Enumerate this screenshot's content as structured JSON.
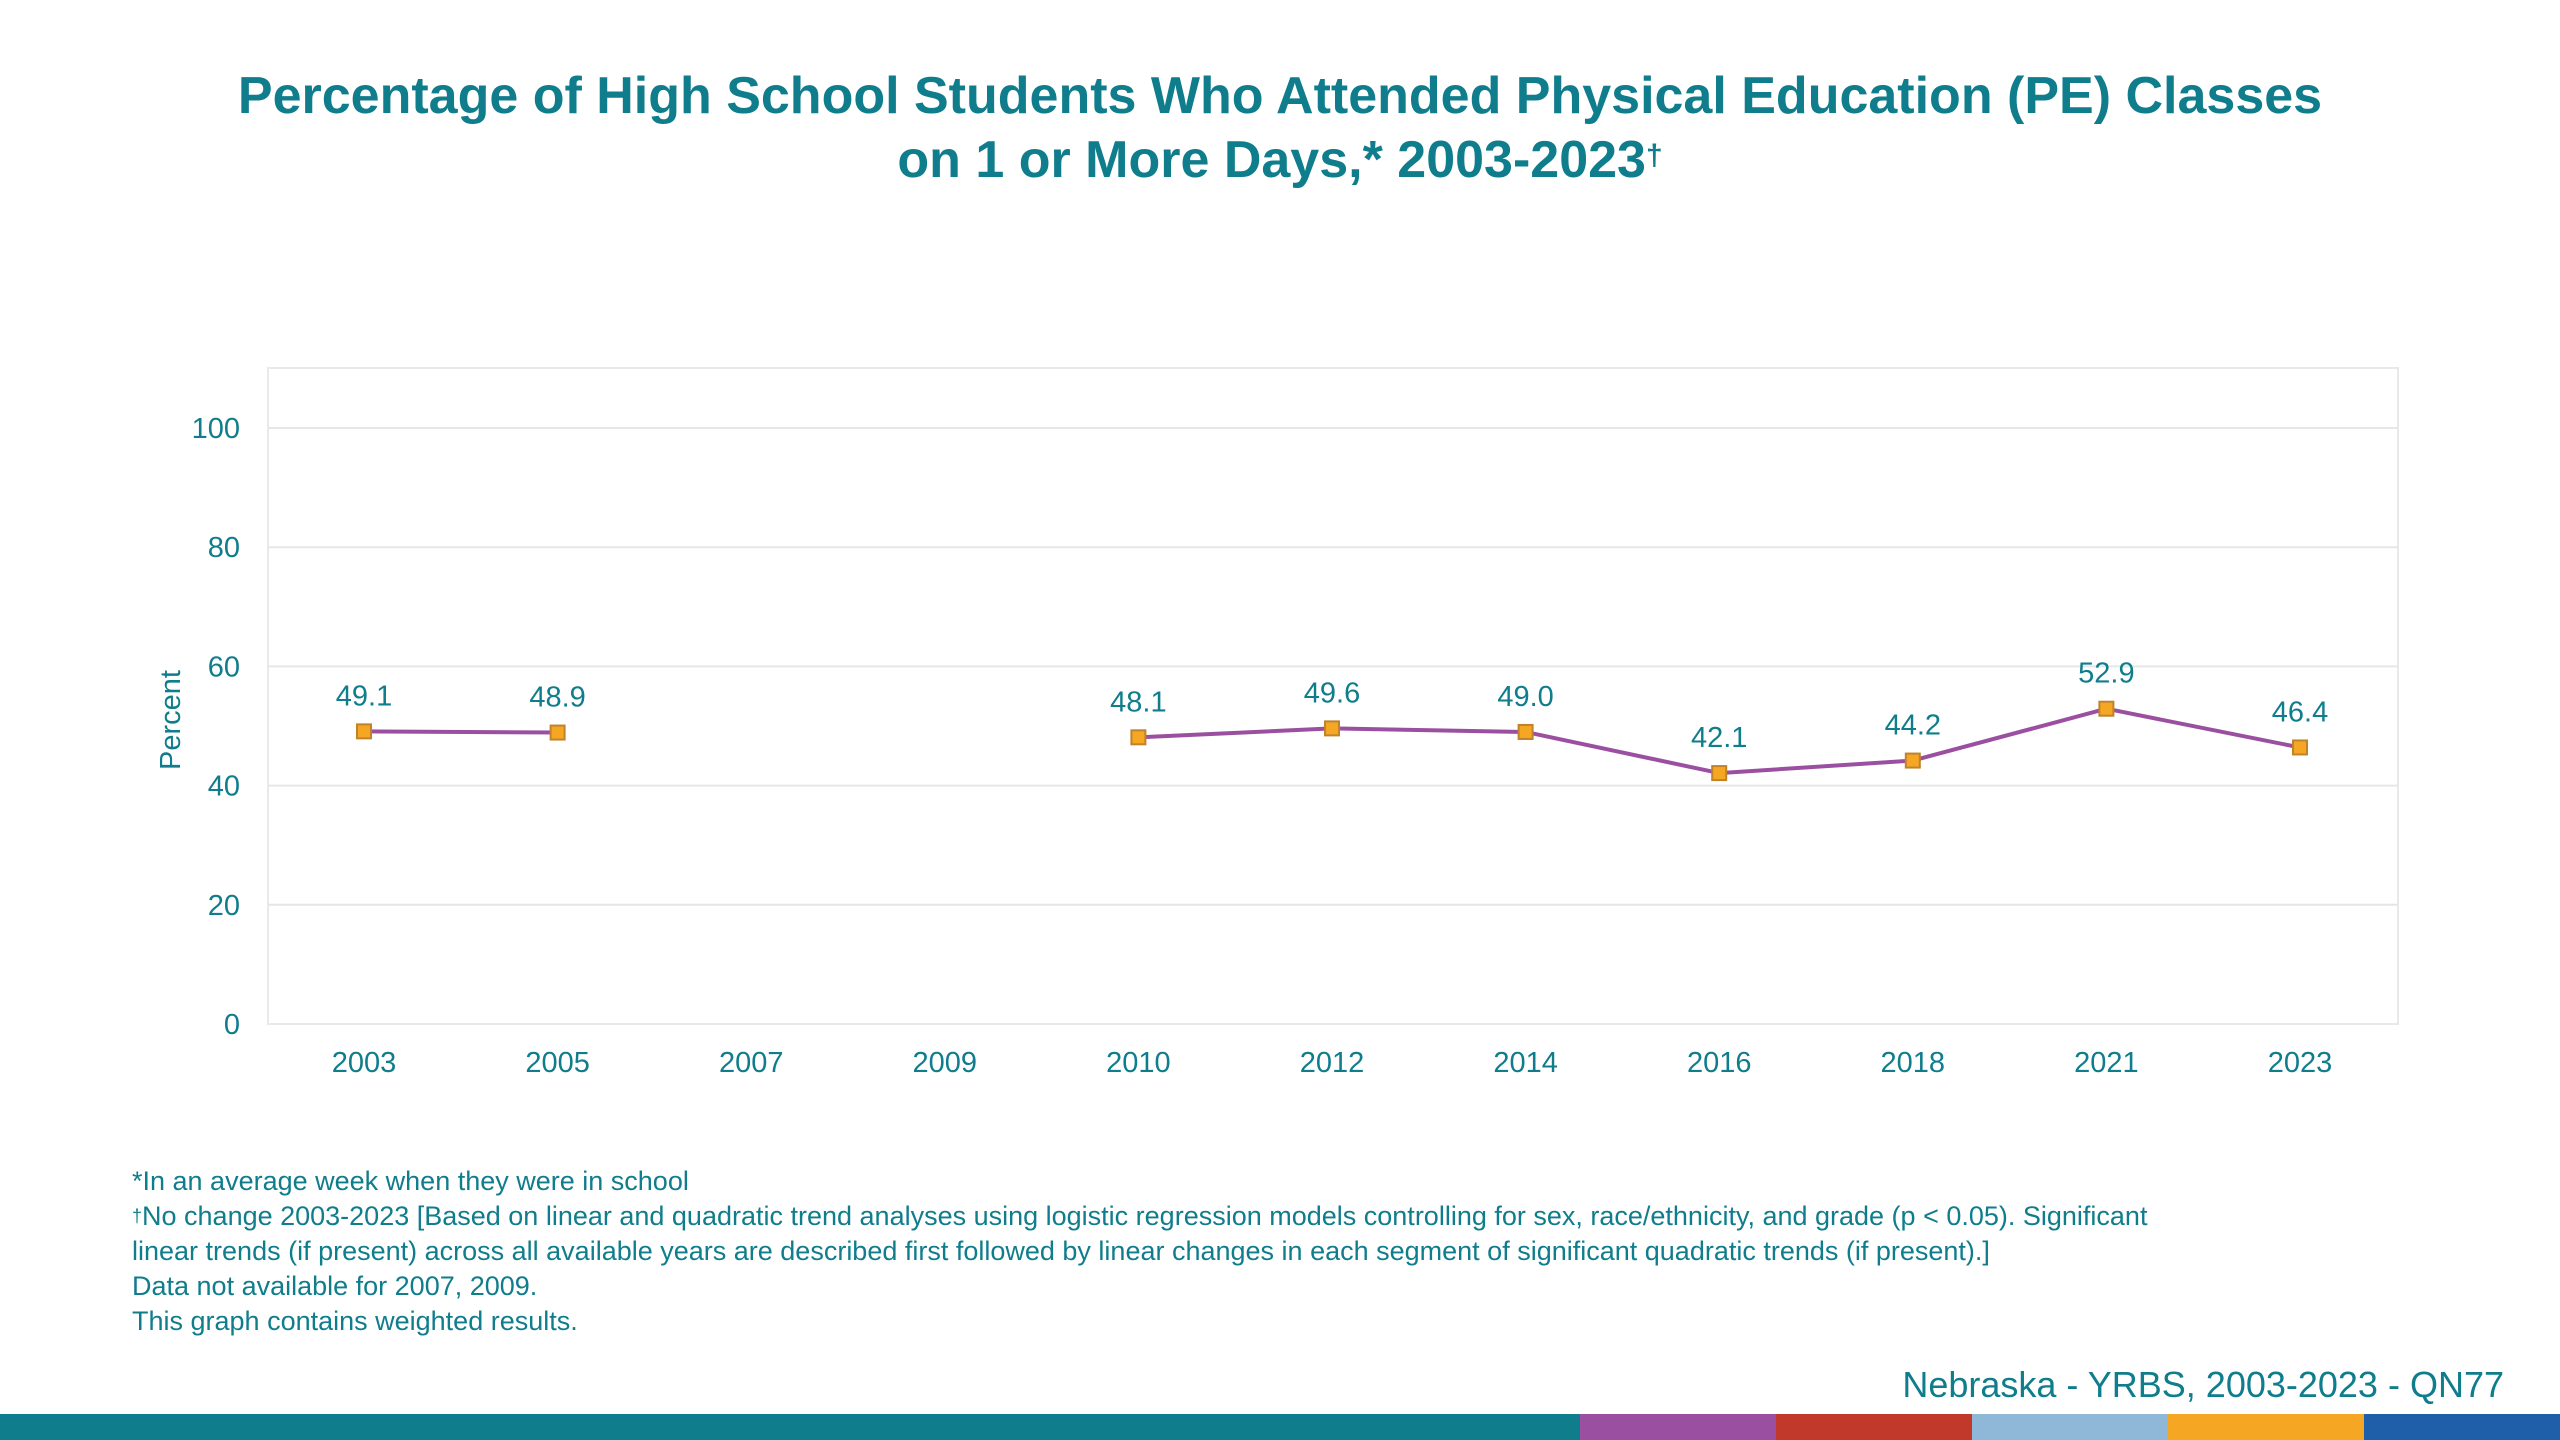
{
  "title_line1": "Percentage of High School Students Who Attended Physical Education (PE) Classes",
  "title_line2": "on 1 or More Days,* 2003-2023",
  "title_mark": "†",
  "footnotes": {
    "line1": "*In an average week when they were in school",
    "line2_mark": "†",
    "line2": "No change 2003-2023 [Based on linear and quadratic trend analyses using logistic regression models controlling for sex, race/ethnicity, and grade (p < 0.05). Significant",
    "line3": "linear trends (if present) across all available years are described first followed by linear changes in each segment of significant quadratic trends (if present).]",
    "line4": "Data not available for 2007, 2009.",
    "line5": "This graph contains weighted results."
  },
  "source": "Nebraska - YRBS, 2003-2023 - QN77",
  "colors": {
    "text": "#0f7d8c",
    "line": "#9b4fa0",
    "marker_fill": "#f5a623",
    "marker_stroke": "#c0822a",
    "grid": "#e6e6e6",
    "bottom_bar": [
      "#0f7d8c",
      "#9b4fa0",
      "#c0392b",
      "#8fb8d8",
      "#f5a623",
      "#1f5faa"
    ]
  },
  "chart_data": {
    "type": "line",
    "ylabel": "Percent",
    "xlabel": "",
    "ylim": [
      0,
      100
    ],
    "yticks": [
      0,
      20,
      40,
      60,
      80,
      100
    ],
    "grid": true,
    "categories": [
      "2003",
      "2005",
      "2007",
      "2009",
      "2010",
      "2012",
      "2014",
      "2016",
      "2018",
      "2021",
      "2023"
    ],
    "series": [
      {
        "values": [
          49.1,
          48.9,
          null,
          null,
          48.1,
          49.6,
          49.0,
          42.1,
          44.2,
          52.9,
          46.4
        ],
        "labels": [
          "49.1",
          "48.9",
          null,
          null,
          "48.1",
          "49.6",
          "49.0",
          "42.1",
          "44.2",
          "52.9",
          "46.4"
        ]
      }
    ]
  }
}
